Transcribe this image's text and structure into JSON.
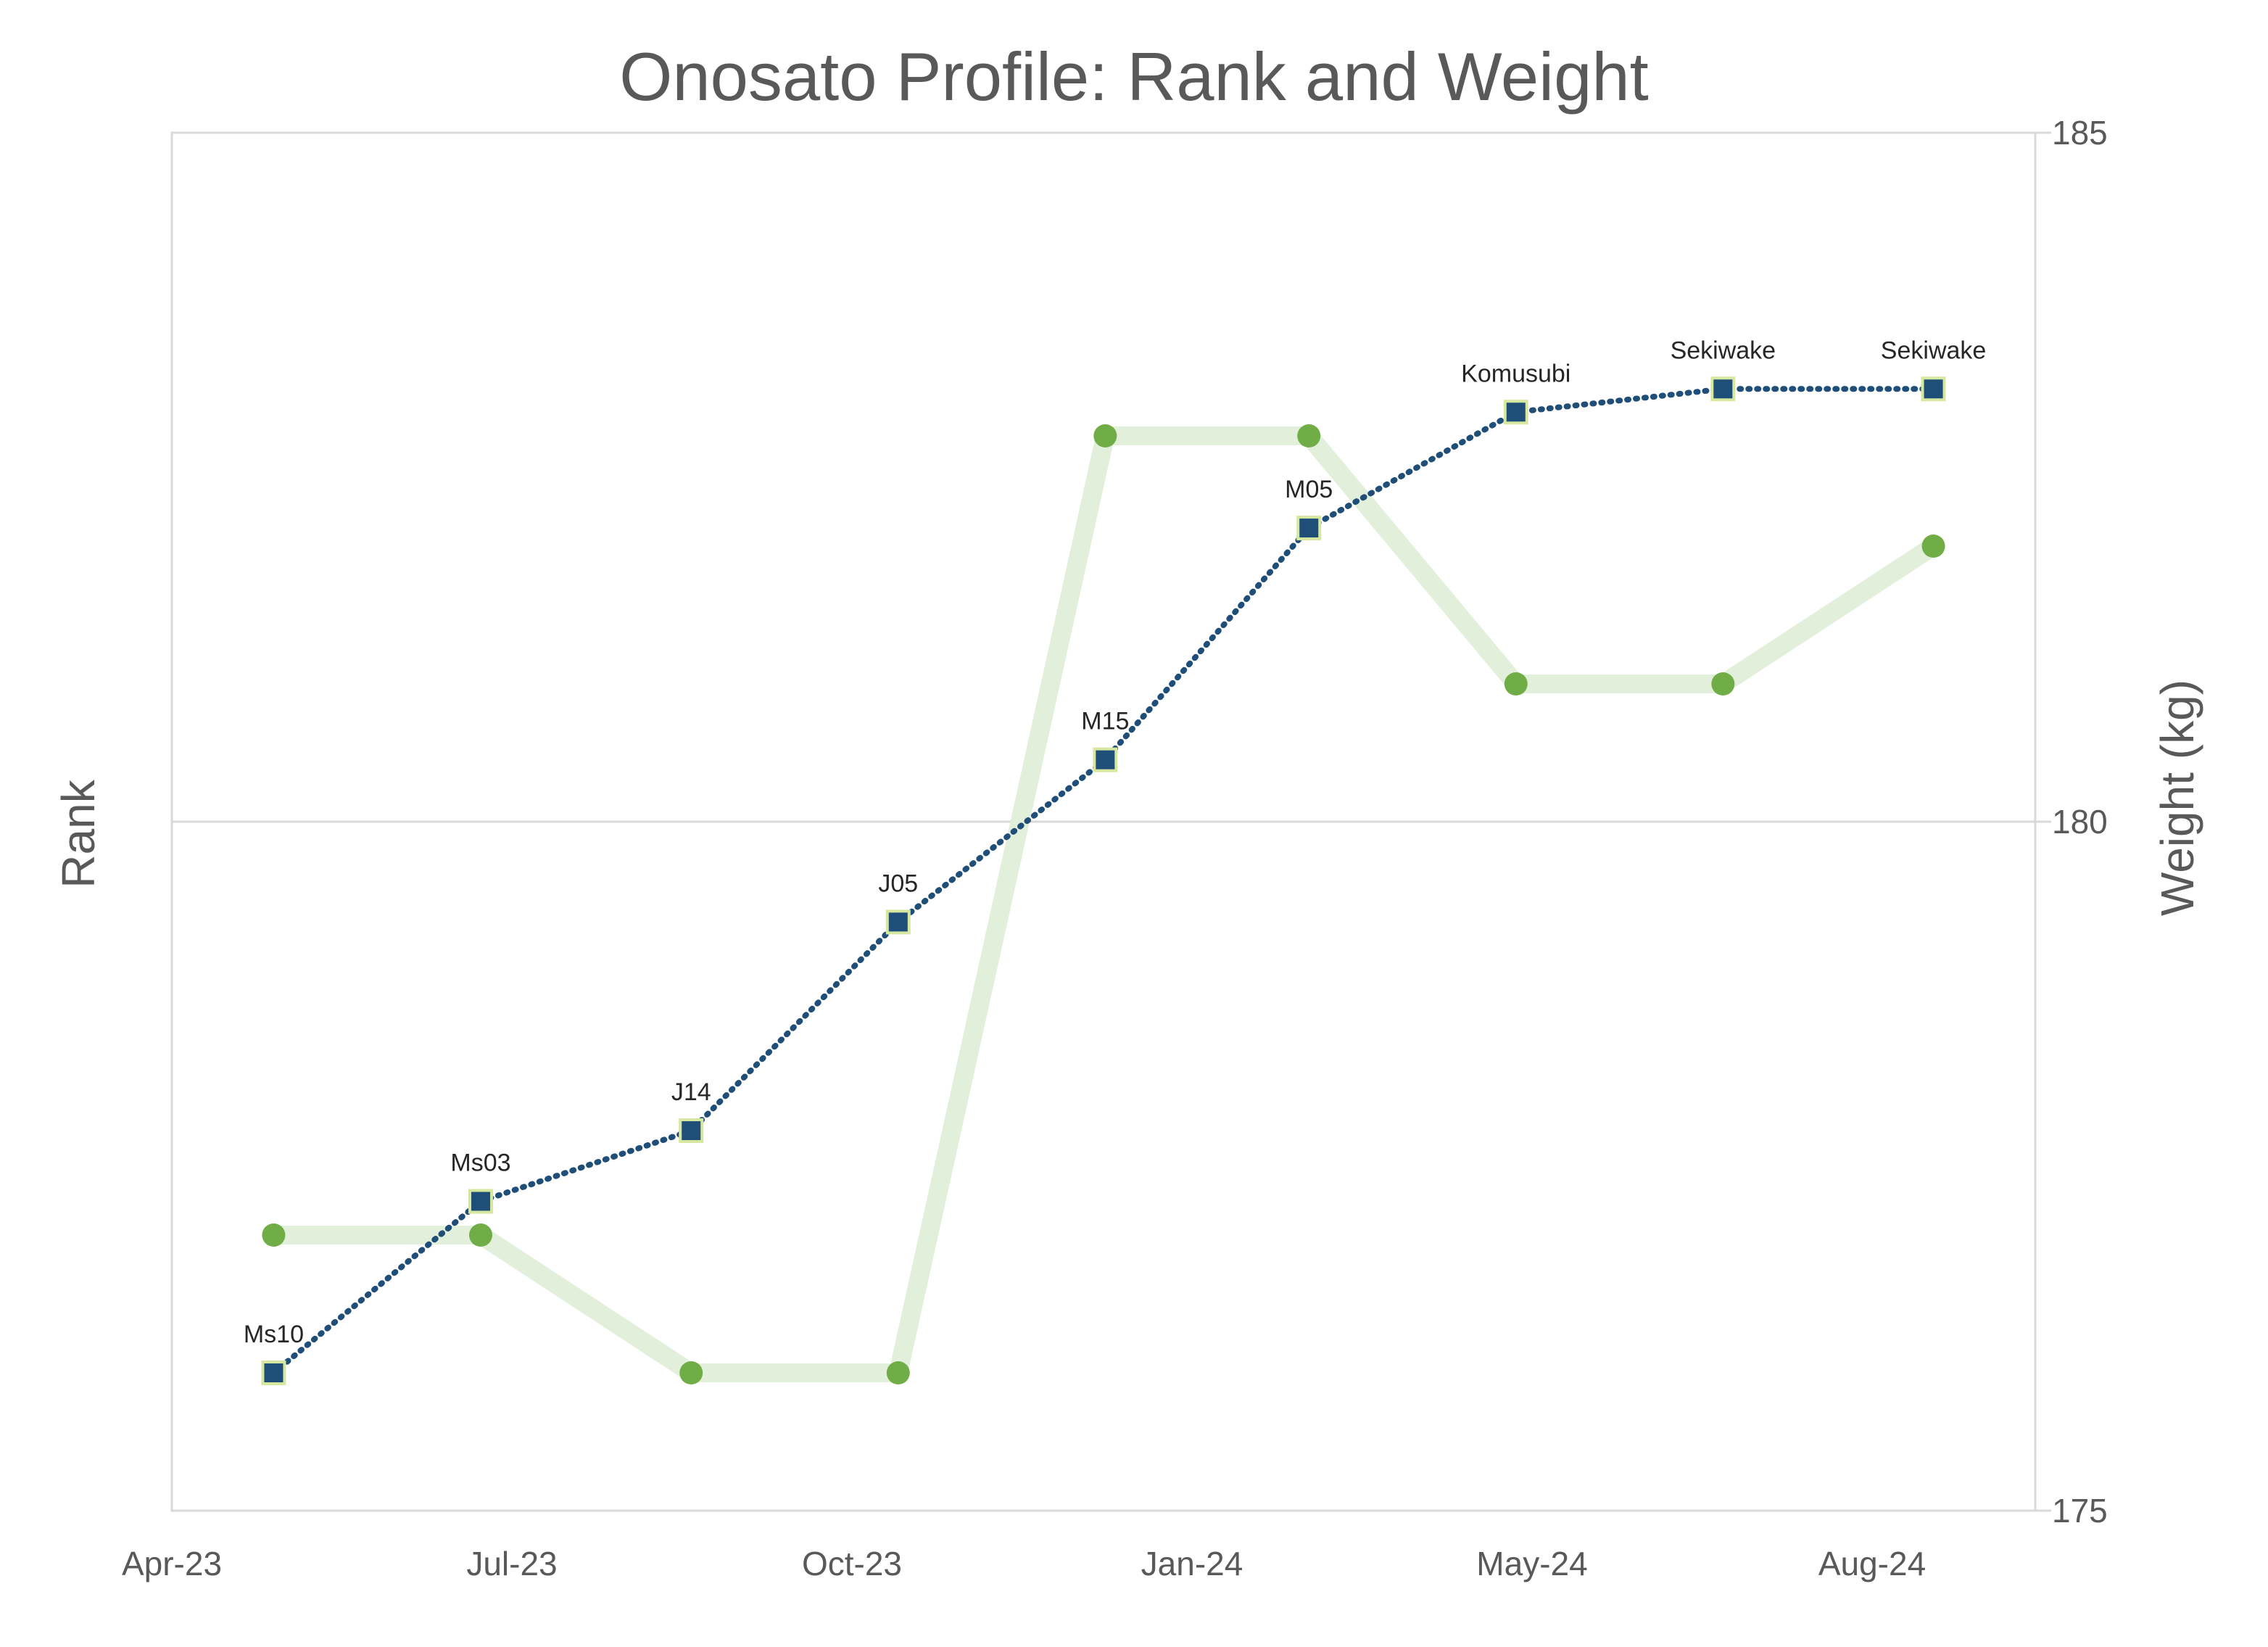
{
  "chart_data": {
    "type": "line",
    "title": "Onosato Profile: Rank and Weight",
    "y_left_label": "Rank",
    "y_right_label": "Weight (kg)",
    "x_axis": {
      "min": "2023-04-01",
      "max": "2024-10-01",
      "tick_labels": [
        "Apr-23",
        "Jul-23",
        "Oct-23",
        "Jan-24",
        "May-24",
        "Aug-24"
      ]
    },
    "y_right_axis": {
      "min": 175,
      "max": 185,
      "tick_labels": [
        "175",
        "180",
        "185"
      ],
      "gridlines": true
    },
    "x": [
      "2023-05-01",
      "2023-07-01",
      "2023-09-01",
      "2023-11-01",
      "2024-01-01",
      "2024-03-01",
      "2024-05-01",
      "2024-07-01",
      "2024-09-01"
    ],
    "series": [
      {
        "key": "rank",
        "color": "#1F4E79",
        "marker": "square",
        "line_style": "dotted",
        "axis": "left",
        "level": [
          0.0,
          0.148,
          0.209,
          0.389,
          0.529,
          0.729,
          0.829,
          0.849,
          0.849
        ],
        "labels": [
          "Ms10",
          "Ms03",
          "J14",
          "J05",
          "M15",
          "M05",
          "Komusubi",
          "Sekiwake",
          "Sekiwake"
        ]
      },
      {
        "key": "weight",
        "color": "#70AD47",
        "line_color": "#E2EFDA",
        "marker": "circle",
        "axis": "right",
        "values": [
          177.0,
          177.0,
          176.0,
          176.0,
          182.8,
          182.8,
          181.0,
          181.0,
          182.0
        ]
      }
    ]
  }
}
